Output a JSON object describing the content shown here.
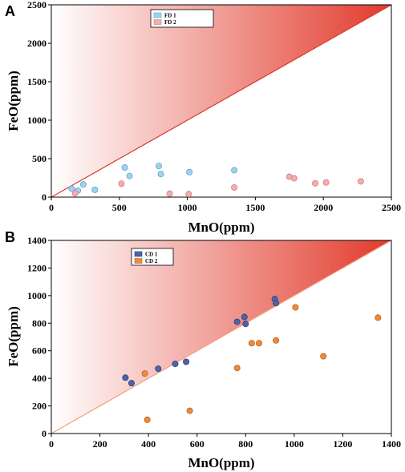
{
  "chart_data": [
    {
      "type": "scatter",
      "panel": "A",
      "xlabel": "MnO(ppm)",
      "ylabel": "FeO(ppm)",
      "xlim": [
        0,
        2500
      ],
      "ylim": [
        0,
        2500
      ],
      "xticks": [
        0,
        500,
        1000,
        1500,
        2000,
        2500
      ],
      "yticks": [
        0,
        500,
        1000,
        1500,
        2000,
        2500
      ],
      "legend_position": "top-center",
      "reference_line": "1:1",
      "colors": {
        "line": "#d83a2e",
        "shade": "#e03a2e"
      },
      "series": [
        {
          "name": "FD 1",
          "color": "#9fd3ec",
          "edge": "#5aa6cc",
          "x": [
            150,
            195,
            235,
            320,
            540,
            575,
            790,
            805,
            1015,
            1345
          ],
          "y": [
            110,
            85,
            165,
            95,
            385,
            275,
            405,
            300,
            325,
            350
          ]
        },
        {
          "name": "FD 2",
          "color": "#f2aeb0",
          "edge": "#d9797c",
          "x": [
            175,
            515,
            870,
            1010,
            1345,
            1750,
            1785,
            1940,
            2020,
            2275
          ],
          "y": [
            50,
            175,
            45,
            40,
            125,
            265,
            245,
            180,
            190,
            205
          ]
        }
      ]
    },
    {
      "type": "scatter",
      "panel": "B",
      "xlabel": "MnO(ppm)",
      "ylabel": "FeO(ppm)",
      "xlim": [
        0,
        1400
      ],
      "ylim": [
        0,
        1400
      ],
      "xticks": [
        0,
        200,
        400,
        600,
        800,
        1000,
        1200,
        1400
      ],
      "yticks": [
        0,
        200,
        400,
        600,
        800,
        1000,
        1200,
        1400
      ],
      "legend_position": "top-center",
      "reference_line": "1:1",
      "colors": {
        "line": "#f0a080",
        "shade": "#e03a2e"
      },
      "series": [
        {
          "name": "CD 1",
          "color": "#4e64a8",
          "edge": "#2d3f7a",
          "x": [
            305,
            330,
            440,
            510,
            555,
            765,
            795,
            800,
            920,
            925
          ],
          "y": [
            405,
            365,
            470,
            505,
            520,
            810,
            845,
            795,
            975,
            945
          ]
        },
        {
          "name": "CD 2",
          "color": "#ef8a3c",
          "edge": "#b8601f",
          "x": [
            385,
            395,
            570,
            765,
            825,
            855,
            925,
            1005,
            1120,
            1345
          ],
          "y": [
            435,
            100,
            165,
            475,
            655,
            655,
            675,
            915,
            560,
            840
          ]
        }
      ]
    }
  ]
}
